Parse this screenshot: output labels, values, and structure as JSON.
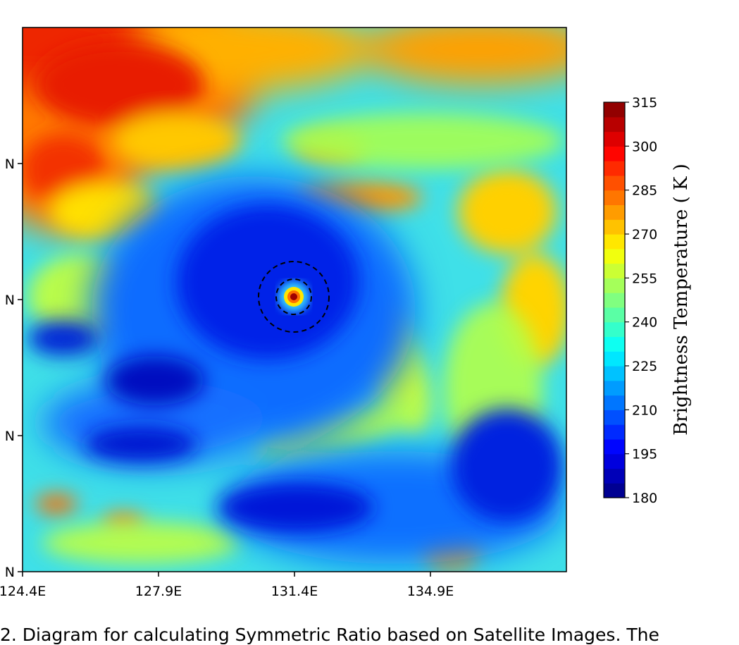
{
  "chart_data": {
    "type": "heatmap",
    "title": "",
    "xlabel": "",
    "ylabel": "",
    "x_tick_labels": [
      "124.4E",
      "127.9E",
      "131.4E",
      "134.9E"
    ],
    "x_ticks": [
      124.4,
      127.9,
      131.4,
      134.9
    ],
    "xlim": [
      124.4,
      138.4
    ],
    "y_tick_labels": [
      "N",
      "N",
      "N",
      "N"
    ],
    "colorbar": {
      "label": "Brightness Temperature ( K )",
      "min": 180,
      "max": 315,
      "step": 5,
      "tick_values": [
        180,
        195,
        210,
        225,
        240,
        255,
        270,
        285,
        300,
        315
      ],
      "tick_labels": [
        "180",
        "195",
        "210",
        "225",
        "240",
        "255",
        "270",
        "285",
        "300",
        "315"
      ],
      "colormap": "jet"
    },
    "annotations": {
      "storm_center_lon": 131.4,
      "circles": "two dashed concentric circles around the storm eye"
    }
  },
  "caption": {
    "text": "2. Diagram for calculating Symmetric Ratio based on Satellite Images. The"
  }
}
